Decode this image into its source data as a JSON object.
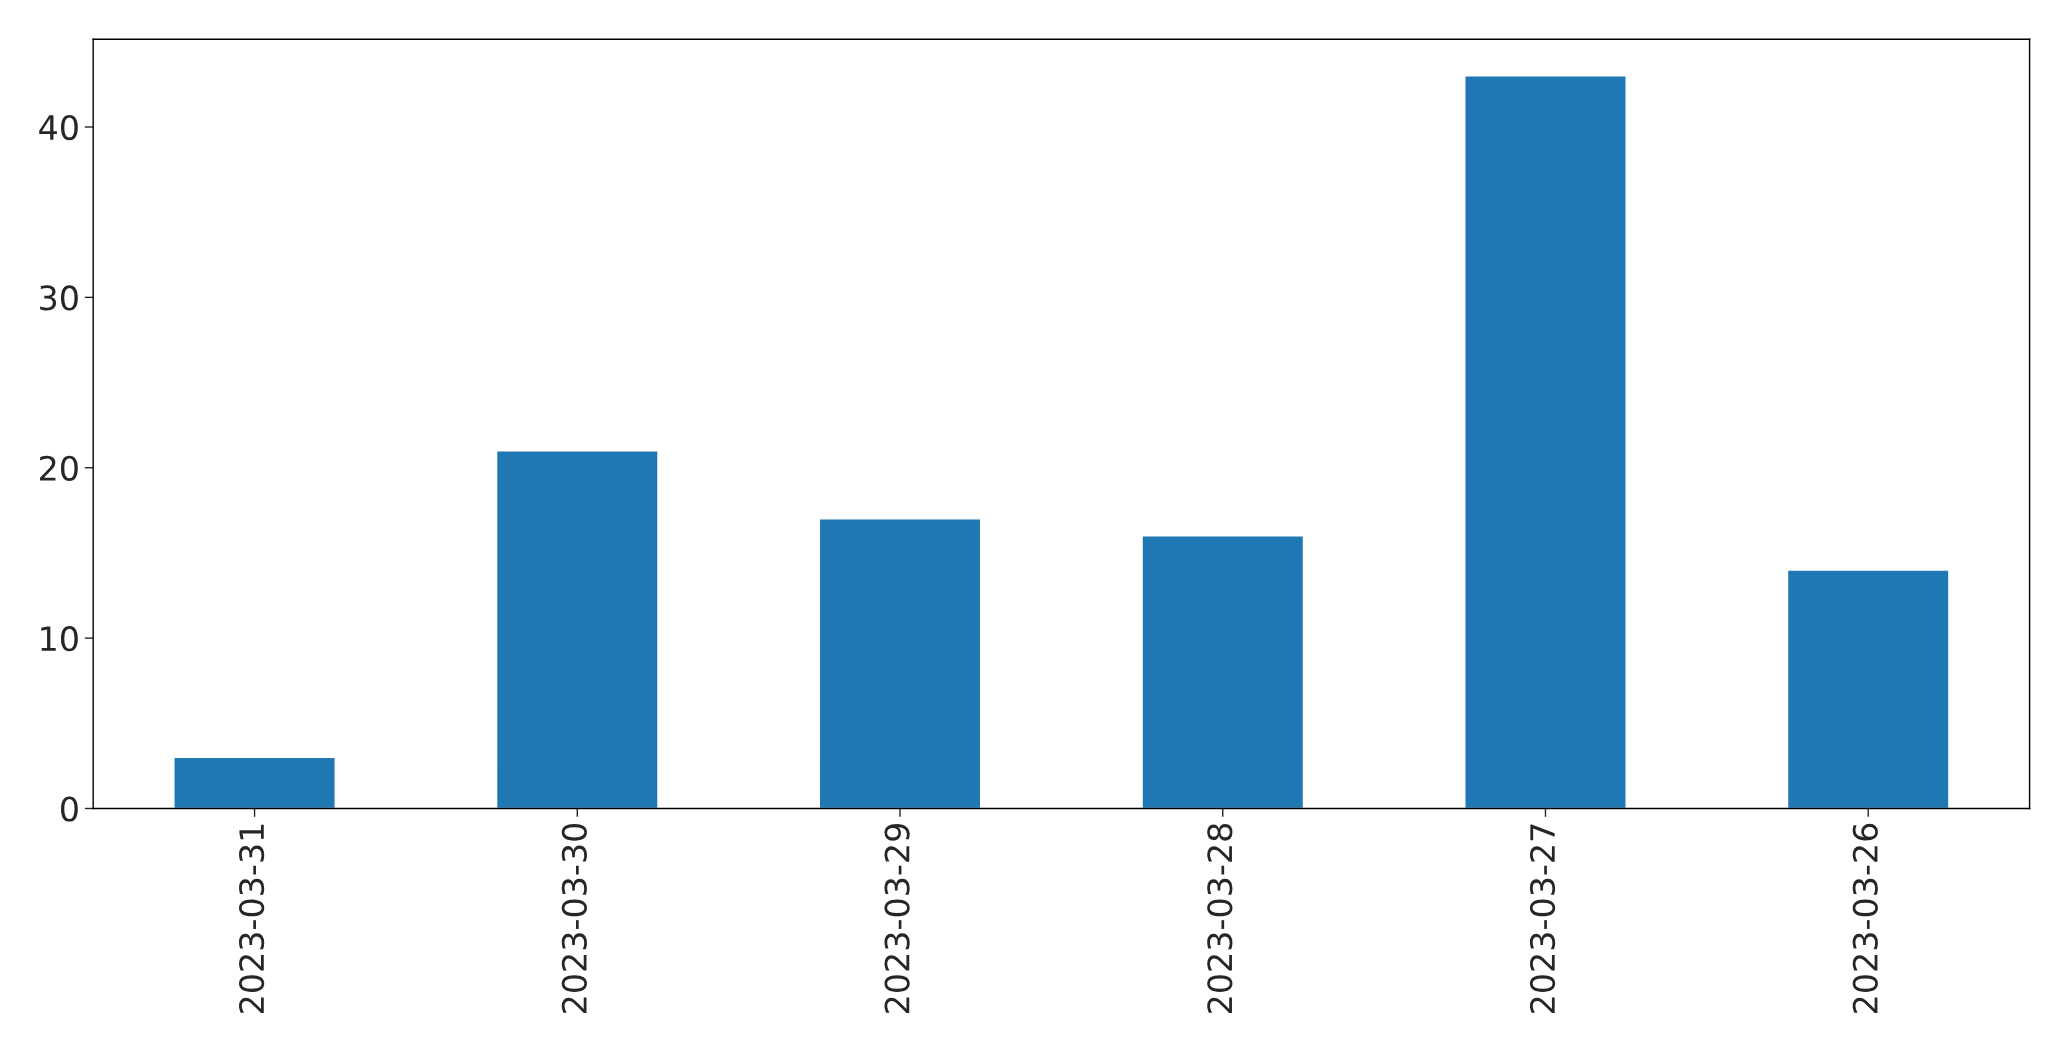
{
  "chart_data": {
    "type": "bar",
    "categories": [
      "2023-03-31",
      "2023-03-30",
      "2023-03-29",
      "2023-03-28",
      "2023-03-27",
      "2023-03-26"
    ],
    "values": [
      3,
      21,
      17,
      16,
      43,
      14
    ],
    "color": "#1f77b4",
    "ylim": [
      0,
      45.15
    ],
    "yticks": [
      0,
      10,
      20,
      30,
      40
    ],
    "grid": false,
    "legend": false
  }
}
